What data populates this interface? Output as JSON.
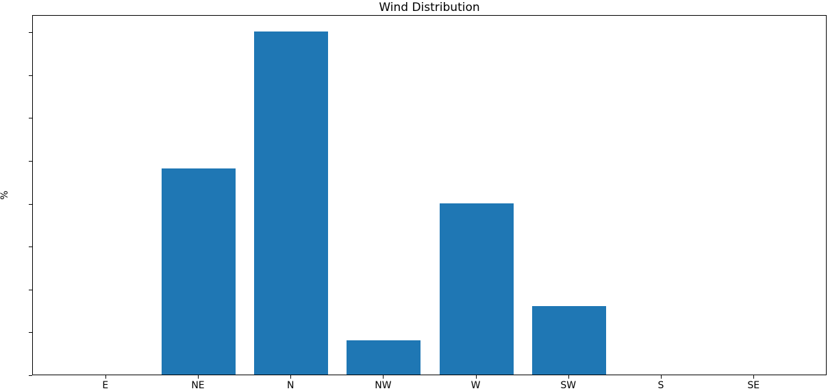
{
  "chart_data": {
    "type": "bar",
    "title": "Wind Distribution",
    "xlabel": "",
    "ylabel": "%",
    "categories": [
      "E",
      "NE",
      "N",
      "NW",
      "W",
      "SW",
      "S",
      "SE"
    ],
    "values": [
      0,
      24,
      40,
      4,
      20,
      8,
      0,
      0
    ],
    "yticks": [
      0,
      5,
      10,
      15,
      20,
      25,
      30,
      35,
      40
    ],
    "ylim": [
      0,
      42
    ],
    "bar_color": "#1f77b4",
    "background_color": "#ffffff",
    "spine_color": "#000000",
    "grid": false,
    "legend": "none"
  }
}
